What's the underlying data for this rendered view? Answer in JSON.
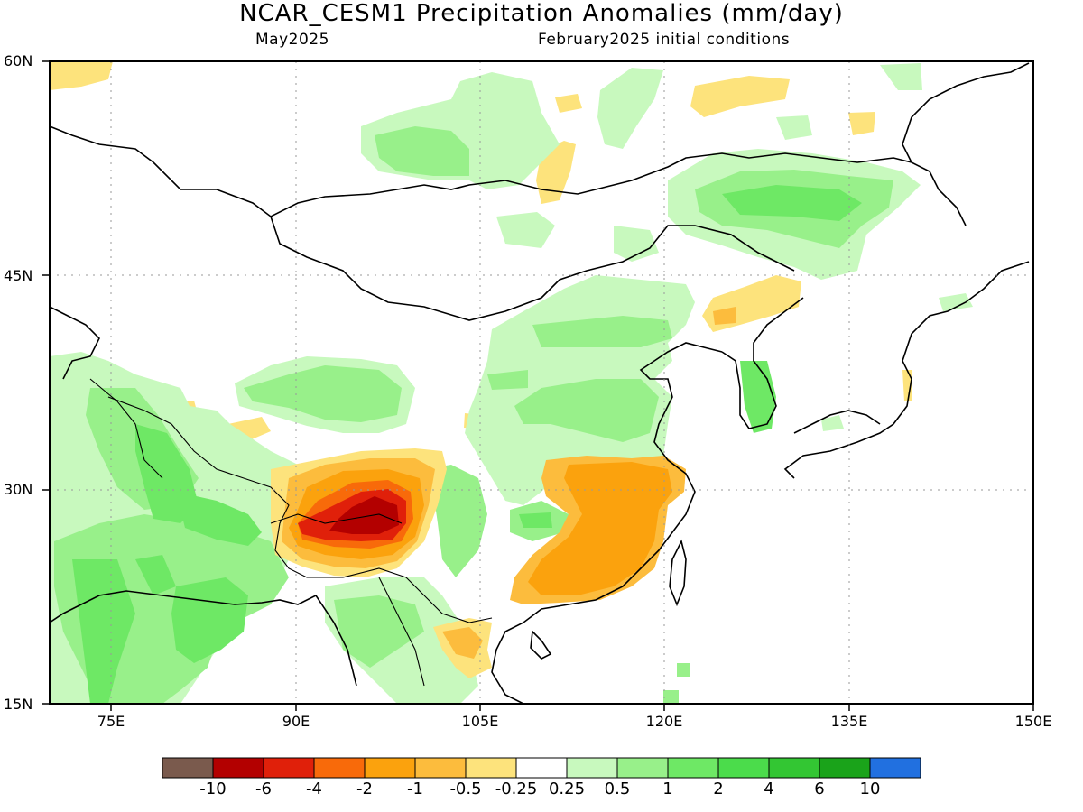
{
  "title": "NCAR_CESM1 Precipitation Anomalies (mm/day)",
  "subtitle_left": "May2025",
  "subtitle_right": "February2025 initial conditions",
  "lat_labels": [
    "60N",
    "45N",
    "30N",
    "15N"
  ],
  "lon_labels": [
    "75E",
    "90E",
    "105E",
    "120E",
    "135E",
    "150E"
  ],
  "colorbar": {
    "colors": [
      "#7a5a4d",
      "#b30000",
      "#e0200a",
      "#f86a0a",
      "#fba20d",
      "#fcbc3d",
      "#fde37c",
      "#ffffff",
      "#c8f9be",
      "#98f08a",
      "#6ee865",
      "#4bdc4b",
      "#33c633",
      "#1aa31a",
      "#2170e0"
    ],
    "labels": [
      "-10",
      "-6",
      "-4",
      "-2",
      "-1",
      "-0.5",
      "-0.25",
      "0.25",
      "0.5",
      "1",
      "2",
      "4",
      "6",
      "10"
    ]
  },
  "map_extent": {
    "lon_min": 70,
    "lon_max": 150,
    "lat_min": 15,
    "lat_max": 60
  }
}
